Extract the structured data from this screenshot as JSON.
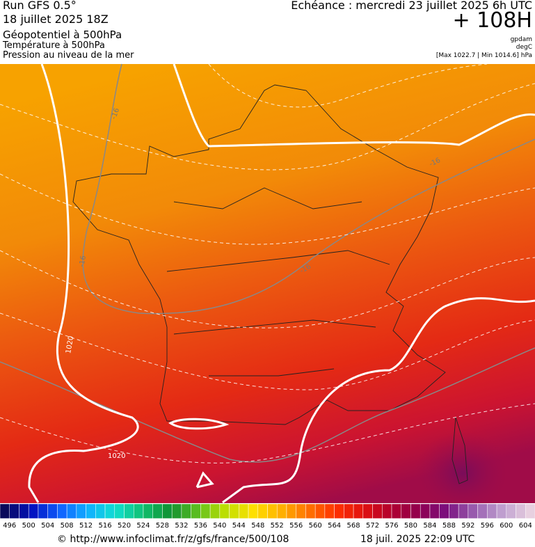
{
  "header": {
    "run": "Run GFS 0.5°",
    "date": "18 juillet 2025 18Z",
    "field1": "Géopotentiel à 500hPa",
    "field2": "Température à 500hPa",
    "field3": "Pression au niveau de la mer",
    "echeance": "Echéance : mercredi 23 juillet 2025 6h UTC",
    "lead": "+ 108H",
    "unit1": "gpdam",
    "unit2": "degC",
    "pressure_range": "[Max 1022.7 | Min 1014.6] hPa"
  },
  "map": {
    "contour_labels": [
      "-16",
      "-16",
      "-16",
      "-16",
      "1020",
      "1020"
    ]
  },
  "colorbar": {
    "labels": [
      "496",
      "500",
      "504",
      "508",
      "512",
      "516",
      "520",
      "524",
      "528",
      "532",
      "536",
      "540",
      "544",
      "548",
      "552",
      "556",
      "560",
      "564",
      "568",
      "572",
      "576",
      "580",
      "584",
      "588",
      "592",
      "596",
      "600",
      "604"
    ]
  },
  "footer": {
    "source": "© http://www.infoclimat.fr/z/gfs/france/500/108",
    "generated": "18 juil. 2025 22:09 UTC"
  }
}
